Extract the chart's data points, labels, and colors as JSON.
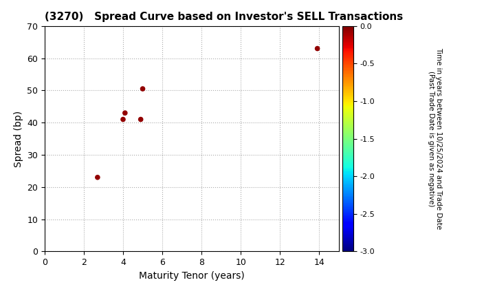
{
  "title": "(3270)   Spread Curve based on Investor's SELL Transactions",
  "xlabel": "Maturity Tenor (years)",
  "ylabel": "Spread (bp)",
  "colorbar_label_line1": "Time in years between 10/25/2024 and Trade Date",
  "colorbar_label_line2": "(Past Trade Date is given as negative)",
  "xlim": [
    0,
    15
  ],
  "ylim": [
    0,
    70
  ],
  "xticks": [
    0,
    2,
    4,
    6,
    8,
    10,
    12,
    14
  ],
  "yticks": [
    0,
    10,
    20,
    30,
    40,
    50,
    60,
    70
  ],
  "cmap": "jet",
  "clim": [
    -3.0,
    0.0
  ],
  "cticks": [
    0.0,
    -0.5,
    -1.0,
    -1.5,
    -2.0,
    -2.5,
    -3.0
  ],
  "scatter_x": [
    2.7,
    4.0,
    4.1,
    4.9,
    5.0,
    13.9
  ],
  "scatter_y": [
    23,
    41,
    43,
    41,
    50.5,
    63
  ],
  "scatter_c": [
    -0.05,
    -0.05,
    -0.05,
    -0.05,
    -0.05,
    -0.05
  ],
  "marker_size": 20,
  "background_color": "#ffffff",
  "grid_color": "#aaaaaa",
  "title_fontsize": 11,
  "axis_fontsize": 10,
  "tick_fontsize": 9,
  "cbar_tick_fontsize": 8,
  "cbar_label_fontsize": 7.5
}
